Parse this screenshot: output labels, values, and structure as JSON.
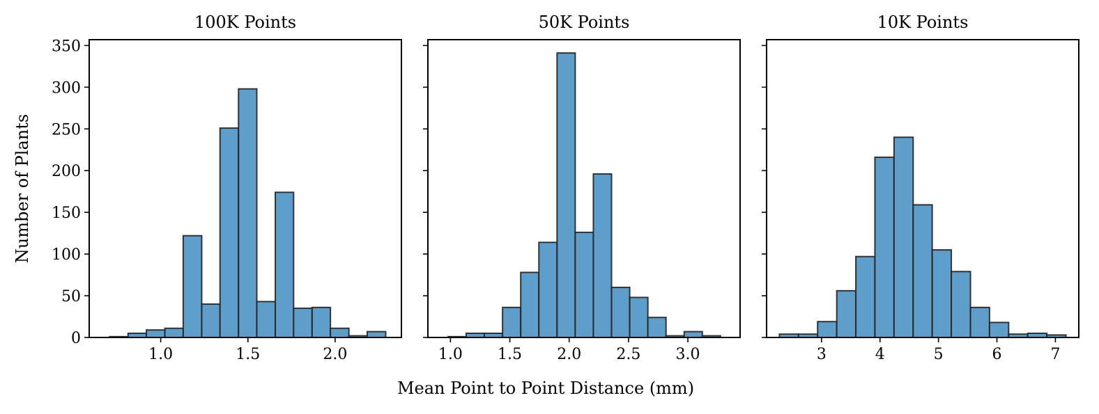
{
  "figure": {
    "ylabel": "Number of Plants",
    "xlabel": "Mean Point to Point Distance (mm)",
    "bar_color": "#5f9ecb",
    "edge_color": "#222222"
  },
  "chart_data": [
    {
      "type": "bar",
      "title": "100K Points",
      "bin_edges": [
        0.707,
        0.813,
        0.918,
        1.024,
        1.129,
        1.235,
        1.34,
        1.446,
        1.551,
        1.657,
        1.762,
        1.868,
        1.973,
        2.079,
        2.184,
        2.29
      ],
      "values": [
        1,
        5,
        9,
        11,
        122,
        40,
        251,
        298,
        43,
        174,
        35,
        36,
        11,
        2,
        7
      ],
      "xlim": [
        0.59,
        2.38
      ],
      "xticks": [
        1.0,
        1.5,
        2.0
      ],
      "xtick_labels": [
        "1.0",
        "1.5",
        "2.0"
      ],
      "ylim": [
        0,
        357
      ],
      "yticks": [
        0,
        50,
        100,
        150,
        200,
        250,
        300,
        350
      ],
      "ytick_labels": [
        "0",
        "50",
        "100",
        "150",
        "200",
        "250",
        "300",
        "350"
      ]
    },
    {
      "type": "bar",
      "title": "50K Points",
      "bin_edges": [
        0.98,
        1.133,
        1.286,
        1.439,
        1.592,
        1.745,
        1.898,
        2.051,
        2.204,
        2.357,
        2.51,
        2.663,
        2.816,
        2.969,
        3.122,
        3.275
      ],
      "values": [
        1,
        5,
        5,
        36,
        78,
        114,
        341,
        126,
        196,
        60,
        48,
        24,
        2,
        7,
        2
      ],
      "xlim": [
        0.81,
        3.44
      ],
      "xticks": [
        1.0,
        1.5,
        2.0,
        2.5,
        3.0
      ],
      "xtick_labels": [
        "1.0",
        "1.5",
        "2.0",
        "2.5",
        "3.0"
      ],
      "ylim": [
        0,
        357
      ],
      "yticks": [
        0,
        50,
        100,
        150,
        200,
        250,
        300,
        350
      ],
      "ytick_labels": [
        "",
        "",
        "",
        "",
        "",
        "",
        "",
        ""
      ]
    },
    {
      "type": "bar",
      "title": "10K Points",
      "bin_edges": [
        2.28,
        2.607,
        2.933,
        3.26,
        3.587,
        3.913,
        4.24,
        4.567,
        4.893,
        5.22,
        5.547,
        5.873,
        6.2,
        6.527,
        6.853,
        7.18
      ],
      "values": [
        4,
        4,
        19,
        56,
        97,
        216,
        240,
        159,
        105,
        79,
        36,
        18,
        4,
        5,
        3
      ],
      "xlim": [
        2.06,
        7.4
      ],
      "xticks": [
        3,
        4,
        5,
        6,
        7
      ],
      "xtick_labels": [
        "3",
        "4",
        "5",
        "6",
        "7"
      ],
      "ylim": [
        0,
        357
      ],
      "yticks": [
        0,
        50,
        100,
        150,
        200,
        250,
        300,
        350
      ],
      "ytick_labels": [
        "",
        "",
        "",
        "",
        "",
        "",
        "",
        ""
      ]
    }
  ]
}
